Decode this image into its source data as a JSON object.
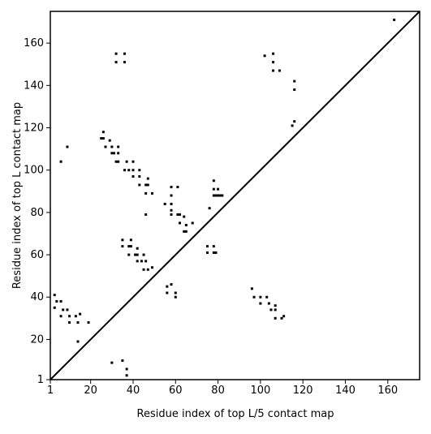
{
  "chart_data": {
    "type": "scatter",
    "xlabel": "Residue index of top L/5 contact map",
    "ylabel": "Residue index of top L contact map",
    "xlim": [
      1,
      175
    ],
    "ylim": [
      1,
      175
    ],
    "xticks": [
      1,
      20,
      40,
      60,
      80,
      100,
      120,
      140,
      160
    ],
    "yticks": [
      1,
      20,
      40,
      60,
      80,
      100,
      120,
      140,
      160
    ],
    "diagonal": true,
    "color": "#000000",
    "x": [
      32,
      36,
      32,
      36,
      102,
      106,
      106,
      106,
      109,
      116,
      116,
      115,
      116,
      163,
      9,
      6,
      26,
      25,
      26,
      29,
      27,
      30,
      33,
      30,
      31,
      33,
      33,
      32,
      37,
      36,
      38,
      40,
      40,
      43,
      40,
      43,
      47,
      43,
      46,
      47,
      46,
      49,
      58,
      58,
      61,
      55,
      58,
      58,
      58,
      61,
      62,
      62,
      65,
      64,
      64,
      65,
      68,
      46,
      76,
      78,
      78,
      80,
      78,
      79,
      80,
      81,
      82,
      78,
      75,
      75,
      78,
      79,
      35,
      39,
      35,
      38,
      39,
      42,
      38,
      41,
      42,
      45,
      42,
      44,
      46,
      45,
      47,
      49,
      56,
      58,
      56,
      60,
      60,
      3,
      4,
      6,
      3,
      7,
      9,
      6,
      10,
      13,
      15,
      10,
      14,
      19,
      14,
      30,
      35,
      37,
      37,
      96,
      97,
      100,
      103,
      100,
      104,
      105,
      107,
      107,
      107,
      110,
      111
    ],
    "y": [
      155,
      155,
      151,
      151,
      154,
      155,
      151,
      147,
      147,
      142,
      138,
      121,
      123,
      171,
      111,
      104,
      118,
      115,
      115,
      114,
      111,
      111,
      111,
      108,
      108,
      108,
      104,
      104,
      104,
      100,
      100,
      100,
      104,
      100,
      97,
      97,
      96,
      93,
      93,
      93,
      89,
      89,
      92,
      88,
      92,
      84,
      84,
      81,
      79,
      79,
      79,
      75,
      74,
      78,
      71,
      71,
      75,
      79,
      82,
      95,
      91,
      91,
      88,
      88,
      88,
      88,
      88,
      64,
      64,
      61,
      61,
      61,
      67,
      67,
      64,
      64,
      64,
      63,
      60,
      60,
      60,
      60,
      57,
      57,
      57,
      53,
      53,
      54,
      45,
      46,
      42,
      42,
      40,
      41,
      38,
      38,
      35,
      34,
      34,
      31,
      31,
      31,
      32,
      28,
      28,
      28,
      19,
      9,
      10,
      6,
      3,
      44,
      40,
      40,
      40,
      37,
      37,
      34,
      36,
      34,
      30,
      30,
      31
    ]
  }
}
